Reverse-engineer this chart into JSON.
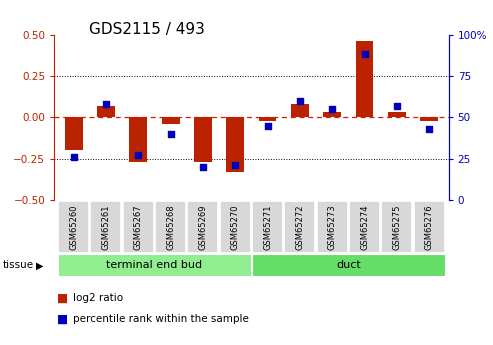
{
  "title": "GDS2115 / 493",
  "samples": [
    "GSM65260",
    "GSM65261",
    "GSM65267",
    "GSM65268",
    "GSM65269",
    "GSM65270",
    "GSM65271",
    "GSM65272",
    "GSM65273",
    "GSM65274",
    "GSM65275",
    "GSM65276"
  ],
  "log2_ratio": [
    -0.2,
    0.07,
    -0.27,
    -0.04,
    -0.27,
    -0.33,
    -0.02,
    0.08,
    0.03,
    0.46,
    0.03,
    -0.02
  ],
  "percentile_rank": [
    26,
    58,
    27,
    40,
    20,
    21,
    45,
    60,
    55,
    88,
    57,
    43
  ],
  "tissue_groups": [
    {
      "label": "terminal end bud",
      "start": 0,
      "end": 6,
      "color": "#90EE90"
    },
    {
      "label": "duct",
      "start": 6,
      "end": 12,
      "color": "#66DD66"
    }
  ],
  "bar_color": "#BB2200",
  "dot_color": "#0000BB",
  "ylim_left": [
    -0.5,
    0.5
  ],
  "ylim_right": [
    0,
    100
  ],
  "yticks_left": [
    -0.5,
    -0.25,
    0.0,
    0.25,
    0.5
  ],
  "yticks_right": [
    0,
    25,
    50,
    75,
    100
  ],
  "ytick_labels_right": [
    "0",
    "25",
    "50",
    "75",
    "100%"
  ],
  "hline_color": "#CC2200",
  "dotted_lines": [
    -0.25,
    0.25
  ],
  "legend_items": [
    {
      "label": "log2 ratio",
      "color": "#BB2200"
    },
    {
      "label": "percentile rank within the sample",
      "color": "#0000BB"
    }
  ],
  "tissue_label": "tissue",
  "bar_width": 0.55,
  "background_color": "#FFFFFF",
  "plot_bg_color": "#FFFFFF",
  "title_fontsize": 11,
  "tick_fontsize": 7.5,
  "sample_fontsize": 6.0
}
